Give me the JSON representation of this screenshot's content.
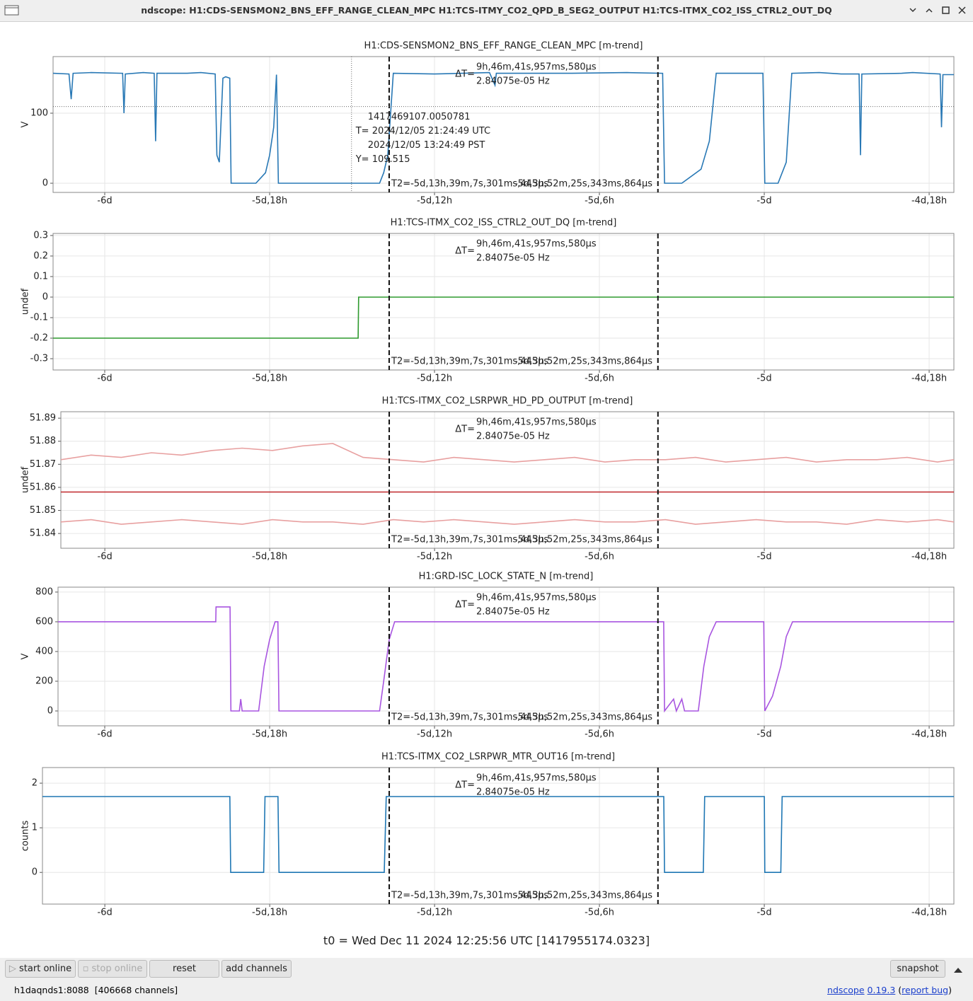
{
  "window_title": "ndscope: H1:CDS-SENSMON2_BNS_EFF_RANGE_CLEAN_MPC H1:TCS-ITMY_CO2_QPD_B_SEG2_OUTPUT H1:TCS-ITMX_CO2_ISS_CTRL2_OUT_DQ",
  "cursors": {
    "x": [
      -133.65,
      -123.87
    ],
    "delta_label": "ΔT=",
    "delta": "9h,46m,41s,957ms,580µs",
    "freq": "2.84075e-05 Hz",
    "t2": "T2=-5d,13h,39m,7s,301ms,445µs",
    "t1": "-5d,3h,52m,25s,343ms,864µs"
  },
  "crosshair": {
    "x": -135.02,
    "y": 109.515,
    "gps": "1417469107.0050781",
    "utc": "T= 2024/12/05 21:24:49 UTC",
    "pst": "2024/12/05 13:24:49 PST",
    "y_label": "Y= 109.515"
  },
  "chart_data": [
    {
      "type": "line",
      "title": "H1:CDS-SENSMON2_BNS_EFF_RANGE_CLEAN_MPC [m-trend]",
      "ylabel": "V",
      "x": [
        -145.88,
        -145.3,
        -145.22,
        -145.15,
        -144.5,
        -143.35,
        -143.3,
        -143.25,
        -142.6,
        -142.2,
        -142.15,
        -142.1,
        -141.0,
        -140.5,
        -139.98,
        -139.92,
        -139.83,
        -139.7,
        -139.6,
        -139.45,
        -139.4,
        -138.5,
        -138.15,
        -138.0,
        -137.85,
        -137.75,
        -137.68,
        -137.6,
        -135.5,
        -134.0,
        -133.85,
        -133.7,
        -133.5,
        -132.0,
        -130.0,
        -129.8,
        -129.75,
        -127.0,
        -125.0,
        -123.7,
        -123.63,
        -123.0,
        -122.3,
        -122.0,
        -121.75,
        -121.0,
        -120.05,
        -119.98,
        -119.5,
        -119.2,
        -119.0,
        -118.0,
        -117.2,
        -116.55,
        -116.5,
        -116.45,
        -115.0,
        -114.6,
        -113.6,
        -113.55,
        -113.5,
        -113.1
      ],
      "series": [
        {
          "color": "#2878b5",
          "values": [
            157,
            156,
            120,
            157,
            158,
            157,
            100,
            156,
            158,
            157,
            60,
            157,
            157,
            158,
            156,
            40,
            30,
            150,
            152,
            150,
            0,
            0,
            15,
            40,
            80,
            155,
            0,
            0,
            0,
            0,
            15,
            40,
            157,
            156,
            158,
            140,
            157,
            157,
            158,
            157,
            0,
            0,
            20,
            60,
            157,
            157,
            157,
            0,
            0,
            30,
            157,
            158,
            156,
            156,
            40,
            156,
            157,
            158,
            156,
            80,
            155,
            155
          ]
        }
      ],
      "xlim": [
        -145.88,
        -113.1
      ],
      "ylim": [
        -13.1,
        180.8
      ],
      "yticks": [
        0,
        100
      ],
      "xticks": [
        {
          "value": -144,
          "label": "-6d"
        },
        {
          "value": -138,
          "label": "-5d,18h"
        },
        {
          "value": -132,
          "label": "-5d,12h"
        },
        {
          "value": -126,
          "label": "-5d,6h"
        },
        {
          "value": -120,
          "label": "-5d"
        },
        {
          "value": -114,
          "label": "-4d,18h"
        }
      ],
      "grid": true
    },
    {
      "type": "line",
      "title": "H1:TCS-ITMX_CO2_ISS_CTRL2_OUT_DQ [m-trend]",
      "ylabel": "undef",
      "x": [
        -145.88,
        -134.78,
        -134.76,
        -113.1
      ],
      "series": [
        {
          "color": "#2e9a2e",
          "values": [
            -0.2,
            -0.2,
            0,
            0
          ]
        }
      ],
      "xlim": [
        -145.88,
        -113.1
      ],
      "ylim": [
        -0.355,
        0.31
      ],
      "yticks": [
        -0.3,
        -0.2,
        -0.1,
        0,
        0.1,
        0.2,
        0.3
      ],
      "xticks": [
        {
          "value": -144,
          "label": "-6d"
        },
        {
          "value": -138,
          "label": "-5d,18h"
        },
        {
          "value": -132,
          "label": "-5d,12h"
        },
        {
          "value": -126,
          "label": "-5d,6h"
        },
        {
          "value": -120,
          "label": "-5d"
        },
        {
          "value": -114,
          "label": "-4d,18h"
        }
      ],
      "grid": true
    },
    {
      "type": "line",
      "title": "H1:TCS-ITMX_CO2_LSRPWR_HD_PD_OUTPUT [m-trend]",
      "ylabel": "undef",
      "x": [
        -145.6,
        -144.5,
        -143.4,
        -142.3,
        -141.2,
        -140.1,
        -139.0,
        -137.9,
        -136.8,
        -135.7,
        -134.6,
        -133.5,
        -132.4,
        -131.3,
        -130.2,
        -129.1,
        -128.0,
        -126.9,
        -125.8,
        -124.7,
        -123.6,
        -122.5,
        -121.4,
        -120.3,
        -119.2,
        -118.1,
        -117.0,
        -115.9,
        -114.8,
        -113.7,
        -113.1
      ],
      "series": [
        {
          "color": "#e8a0a0",
          "values": [
            51.872,
            51.874,
            51.873,
            51.875,
            51.874,
            51.876,
            51.877,
            51.876,
            51.878,
            51.879,
            51.873,
            51.872,
            51.871,
            51.873,
            51.872,
            51.871,
            51.872,
            51.873,
            51.871,
            51.872,
            51.872,
            51.873,
            51.871,
            51.872,
            51.873,
            51.871,
            51.872,
            51.872,
            51.873,
            51.871,
            51.872
          ]
        },
        {
          "color": "#c0282a",
          "values": [
            51.858,
            51.858,
            51.858,
            51.858,
            51.858,
            51.858,
            51.858,
            51.858,
            51.858,
            51.858,
            51.858,
            51.858,
            51.858,
            51.858,
            51.858,
            51.858,
            51.858,
            51.858,
            51.858,
            51.858,
            51.858,
            51.858,
            51.858,
            51.858,
            51.858,
            51.858,
            51.858,
            51.858,
            51.858,
            51.858,
            51.858
          ]
        },
        {
          "color": "#e8a0a0",
          "values": [
            51.845,
            51.846,
            51.844,
            51.845,
            51.846,
            51.845,
            51.844,
            51.846,
            51.845,
            51.845,
            51.844,
            51.846,
            51.845,
            51.846,
            51.845,
            51.844,
            51.845,
            51.846,
            51.845,
            51.845,
            51.846,
            51.844,
            51.845,
            51.846,
            51.845,
            51.845,
            51.844,
            51.846,
            51.845,
            51.846,
            51.845
          ]
        }
      ],
      "xlim": [
        -145.6,
        -113.1
      ],
      "ylim": [
        51.8336,
        51.8928
      ],
      "yticks": [
        51.84,
        51.85,
        51.86,
        51.87,
        51.88,
        51.89
      ],
      "xticks": [
        {
          "value": -144,
          "label": "-6d"
        },
        {
          "value": -138,
          "label": "-5d,18h"
        },
        {
          "value": -132,
          "label": "-5d,12h"
        },
        {
          "value": -126,
          "label": "-5d,6h"
        },
        {
          "value": -120,
          "label": "-5d"
        },
        {
          "value": -114,
          "label": "-4d,18h"
        }
      ],
      "grid": true
    },
    {
      "type": "line",
      "title": "H1:GRD-ISC_LOCK_STATE_N [m-trend]",
      "ylabel": "V",
      "x": [
        -145.7,
        -139.96,
        -139.95,
        -139.44,
        -139.41,
        -139.1,
        -139.05,
        -139.0,
        -138.6,
        -138.4,
        -138.2,
        -138.0,
        -137.8,
        -137.7,
        -137.66,
        -134.0,
        -133.85,
        -133.65,
        -133.45,
        -123.66,
        -123.63,
        -123.3,
        -123.2,
        -123.0,
        -122.9,
        -122.4,
        -122.2,
        -122.0,
        -121.75,
        -120.02,
        -119.98,
        -119.7,
        -119.4,
        -119.2,
        -118.97,
        -113.1
      ],
      "series": [
        {
          "color": "#a855e0",
          "values": [
            600,
            600,
            700,
            700,
            0,
            0,
            80,
            0,
            0,
            0,
            300,
            480,
            600,
            600,
            0,
            0,
            200,
            480,
            600,
            600,
            0,
            80,
            0,
            80,
            0,
            0,
            300,
            500,
            600,
            600,
            0,
            100,
            300,
            500,
            600,
            600
          ]
        }
      ],
      "xlim": [
        -145.7,
        -113.1
      ],
      "ylim": [
        -100,
        833
      ],
      "yticks": [
        0,
        200,
        400,
        600,
        800
      ],
      "xticks": [
        {
          "value": -144,
          "label": "-6d"
        },
        {
          "value": -138,
          "label": "-5d,18h"
        },
        {
          "value": -132,
          "label": "-5d,12h"
        },
        {
          "value": -126,
          "label": "-5d,6h"
        },
        {
          "value": -120,
          "label": "-5d"
        },
        {
          "value": -114,
          "label": "-4d,18h"
        }
      ],
      "grid": true
    },
    {
      "type": "line",
      "title": "H1:TCS-ITMX_CO2_LSRPWR_MTR_OUT16 [m-trend]",
      "ylabel": "counts",
      "x": [
        -146.27,
        -139.45,
        -139.42,
        -138.22,
        -138.17,
        -137.7,
        -137.66,
        -133.83,
        -133.76,
        -123.66,
        -123.63,
        -122.22,
        -122.17,
        -120.0,
        -119.98,
        -119.4,
        -119.35,
        -113.1
      ],
      "series": [
        {
          "color": "#1f77b4",
          "values": [
            1.7,
            1.7,
            0,
            0,
            1.7,
            1.7,
            0,
            0,
            1.7,
            1.7,
            0,
            0,
            1.7,
            1.7,
            0,
            0,
            1.7,
            1.7
          ]
        }
      ],
      "xlim": [
        -146.27,
        -113.1
      ],
      "ylim": [
        -0.71,
        2.35
      ],
      "yticks": [
        0,
        1,
        2
      ],
      "xticks": [
        {
          "value": -144,
          "label": "-6d"
        },
        {
          "value": -138,
          "label": "-5d,18h"
        },
        {
          "value": -132,
          "label": "-5d,12h"
        },
        {
          "value": -126,
          "label": "-5d,6h"
        },
        {
          "value": -120,
          "label": "-5d"
        },
        {
          "value": -114,
          "label": "-4d,18h"
        }
      ],
      "grid": true
    }
  ],
  "t0": "t0 = Wed Dec 11 2024 12:25:56 UTC [1417955174.0323]",
  "buttons": {
    "start": "start online",
    "stop": "stop online",
    "reset": "reset",
    "add": "add channels",
    "snapshot": "snapshot"
  },
  "status": {
    "server": "h1daqnds1:8088  [406668 channels]",
    "app": "ndscope",
    "version": "0.19.3",
    "open": "(",
    "bug": "report bug",
    "close": ")"
  }
}
